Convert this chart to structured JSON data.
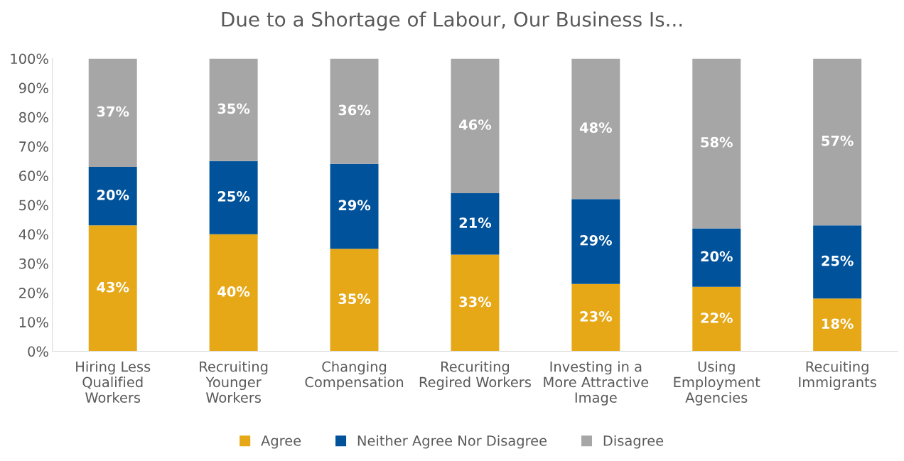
{
  "chart_data": {
    "type": "bar",
    "stacked": true,
    "title": "Due to a Shortage of Labour, Our Business Is...",
    "categories": [
      "Hiring Less\nQualified\nWorkers",
      "Recruiting\nYounger\nWorkers",
      "Changing\nCompensation",
      "Recuriting\nRegired Workers",
      "Investing in a\nMore Attractive\nImage",
      "Using\nEmployment\nAgencies",
      "Recuiting\nImmigrants"
    ],
    "series": [
      {
        "name": "Agree",
        "color": "#e6a817",
        "values": [
          43,
          40,
          35,
          33,
          23,
          22,
          18
        ],
        "value_labels": [
          "43%",
          "40%",
          "35%",
          "33%",
          "23%",
          "22%",
          "18%"
        ]
      },
      {
        "name": "Neither Agree Nor Disagree",
        "color": "#00529b",
        "values": [
          20,
          25,
          29,
          21,
          29,
          20,
          25
        ],
        "value_labels": [
          "20%",
          "25%",
          "29%",
          "21%",
          "29%",
          "20%",
          "25%"
        ]
      },
      {
        "name": "Disagree",
        "color": "#a6a6a6",
        "values": [
          37,
          35,
          36,
          46,
          48,
          58,
          57
        ],
        "value_labels": [
          "37%",
          "35%",
          "36%",
          "46%",
          "48%",
          "58%",
          "57%"
        ]
      }
    ],
    "ylim": [
      0,
      100
    ],
    "yticks": [
      {
        "value": 0,
        "label": "0%"
      },
      {
        "value": 10,
        "label": "10%"
      },
      {
        "value": 20,
        "label": "20%"
      },
      {
        "value": 30,
        "label": "30%"
      },
      {
        "value": 40,
        "label": "40%"
      },
      {
        "value": 50,
        "label": "50%"
      },
      {
        "value": 60,
        "label": "60%"
      },
      {
        "value": 70,
        "label": "70%"
      },
      {
        "value": 80,
        "label": "80%"
      },
      {
        "value": 90,
        "label": "90%"
      },
      {
        "value": 100,
        "label": "100%"
      }
    ],
    "legend": "bottom",
    "grid": false
  }
}
